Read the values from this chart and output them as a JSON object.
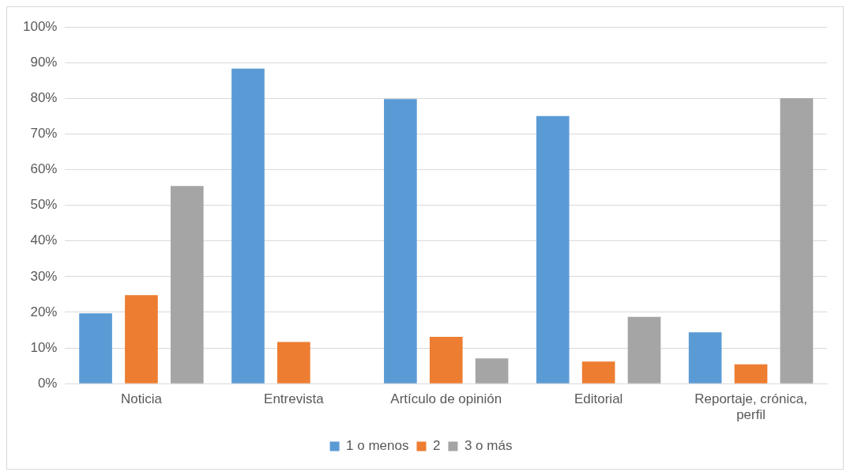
{
  "chart_data": {
    "type": "bar",
    "categories": [
      "Noticia",
      "Entrevista",
      "Artículo de opinión",
      "Editorial",
      "Reportaje, crónica, perfil"
    ],
    "series": [
      {
        "name": "1 o menos",
        "color": "#5b9bd5",
        "values": [
          19.7,
          88.3,
          79.8,
          75,
          14.4
        ]
      },
      {
        "name": "2",
        "color": "#ed7d31",
        "values": [
          24.8,
          11.7,
          13.1,
          6.2,
          5.4
        ]
      },
      {
        "name": "3 o más",
        "color": "#a5a5a5",
        "values": [
          55.4,
          0,
          7.1,
          18.7,
          80
        ]
      }
    ],
    "ylim": [
      0,
      100
    ],
    "yticks": [
      {
        "value": 0,
        "label": "0%"
      },
      {
        "value": 10,
        "label": "10%"
      },
      {
        "value": 20,
        "label": "20%"
      },
      {
        "value": 30,
        "label": "30%"
      },
      {
        "value": 40,
        "label": "40%"
      },
      {
        "value": 50,
        "label": "50%"
      },
      {
        "value": 60,
        "label": "60%"
      },
      {
        "value": 70,
        "label": "70%"
      },
      {
        "value": 80,
        "label": "80%"
      },
      {
        "value": 90,
        "label": "90%"
      },
      {
        "value": 100,
        "label": "100%"
      }
    ],
    "grid": "y",
    "legend": "bottom"
  }
}
